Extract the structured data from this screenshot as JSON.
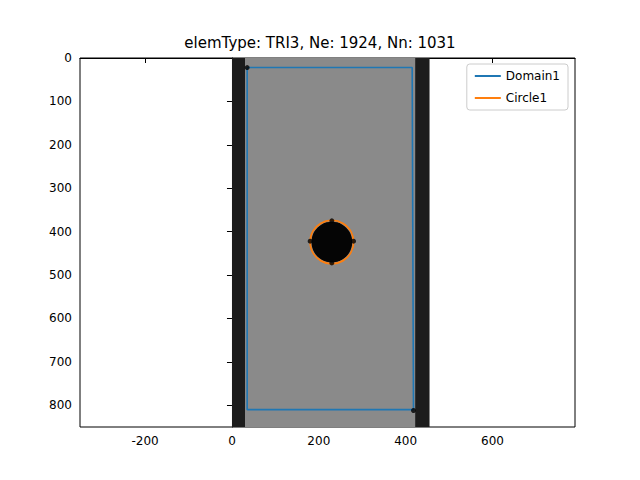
{
  "chart_data": {
    "type": "mesh",
    "title": "elemType: TRI3, Ne: 1924, Nn: 1031",
    "xlim": [
      -350,
      790
    ],
    "ylim": [
      850,
      0
    ],
    "xticks": [
      -200,
      0,
      200,
      400,
      600
    ],
    "yticks": [
      0,
      100,
      200,
      300,
      400,
      500,
      600,
      700,
      800
    ],
    "legend": "upper right",
    "series": [
      {
        "name": "Domain1",
        "color": "#1f77b4",
        "type": "line",
        "x": [
          35,
          415,
          418,
          35,
          35
        ],
        "y": [
          22,
          22,
          810,
          810,
          22
        ]
      },
      {
        "name": "Circle1",
        "color": "#ff7f0e",
        "type": "circle",
        "center": [
          230,
          424
        ],
        "radius": 50
      }
    ],
    "nodes": {
      "color": "#000000",
      "x": [
        35,
        418,
        230,
        280,
        230,
        180
      ],
      "y": [
        22,
        812,
        375,
        422,
        472,
        422
      ]
    },
    "image": {
      "extent_x": [
        0,
        455
      ],
      "extent_y": [
        0,
        850
      ],
      "specimen_x": [
        30,
        422
      ],
      "hole_center": [
        230,
        424
      ],
      "hole_radius": 47
    }
  }
}
